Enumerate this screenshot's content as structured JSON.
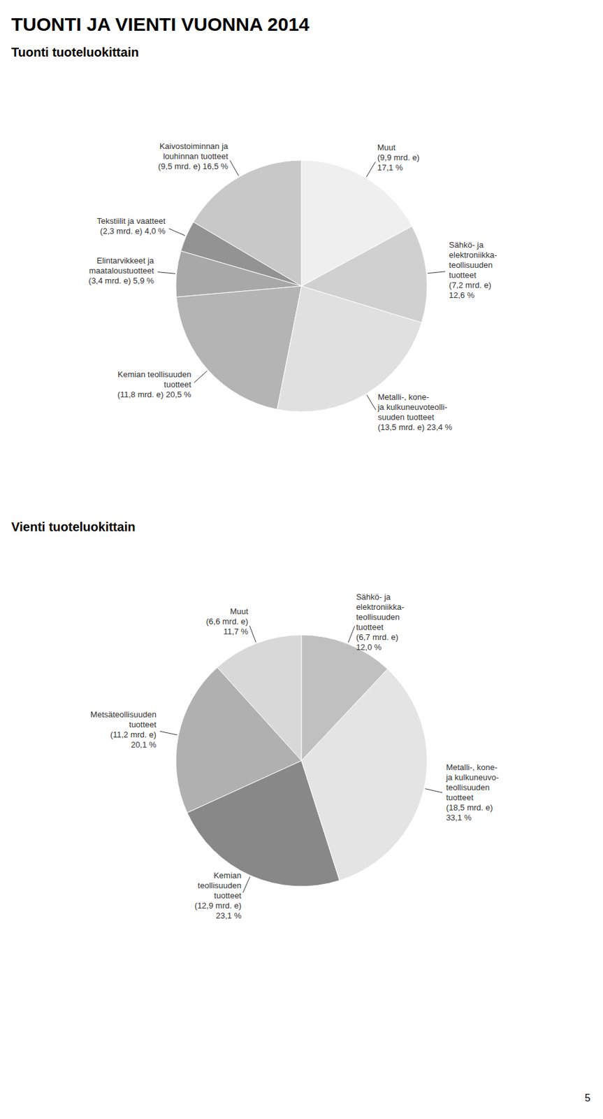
{
  "title": "TUONTI JA VIENTI VUONNA 2014",
  "annotations": [
    "5"
  ],
  "chart_data": [
    {
      "type": "pie",
      "title": "Tuonti tuoteluokittain",
      "categories": [
        "Kaivostoiminnan ja\nlouhinnan tuotteet",
        "Tekstiilit ja vaatteet",
        "Elintarvikkeet ja\nmaataloustuotteet",
        "Kemian teollisuuden\ntuotteet",
        "Metalli-, kone-\nja kulkuneuvoteolli-\nsuuden tuotteet",
        "Sähkö- ja\nelektroniikka-\nteollisuuden\ntuotteet",
        "Muut"
      ],
      "values": [
        16.5,
        4.0,
        5.9,
        20.5,
        23.4,
        12.6,
        17.1
      ],
      "value_labels": [
        "(9,5 mrd. e) 16,5 %",
        "(2,3 mrd. e) 4,0 %",
        "(3,4 mrd. e) 5,9 %",
        "(11,8 mrd. e) 20,5 %",
        "(13,5 mrd. e) 23,4 %",
        "(7,2 mrd. e)\n12,6 %",
        "(9,9 mrd. e)\n17,1 %"
      ],
      "colors": [
        "#c8c8c8",
        "#939393",
        "#a8a8a8",
        "#b4b4b4",
        "#e0e0e0",
        "#d0d0d0",
        "#efefef"
      ],
      "data_labels": true
    },
    {
      "type": "pie",
      "title": "Vienti tuoteluokittain",
      "categories": [
        "Muut",
        "Metsäteollisuuden\ntuotteet",
        "Kemian\nteollisuuden\ntuotteet",
        "Metalli-, kone-\nja kulkuneuvo-\nteollisuuden\ntuotteet",
        "Sähkö- ja\nelektroniikka-\nteollisuuden\ntuotteet"
      ],
      "values": [
        11.7,
        20.1,
        23.1,
        33.1,
        12.0
      ],
      "value_labels": [
        "(6,6 mrd. e)\n11,7 %",
        "(11,2 mrd. e)\n20,1 %",
        "(12,9 mrd. e)\n23,1 %",
        "(18,5 mrd. e)\n33,1 %",
        "(6,7 mrd. e)\n12,0 %"
      ],
      "colors": [
        "#d8d8d8",
        "#b0b0b0",
        "#888888",
        "#e4e4e4",
        "#c0c0c0"
      ],
      "data_labels": true
    }
  ]
}
